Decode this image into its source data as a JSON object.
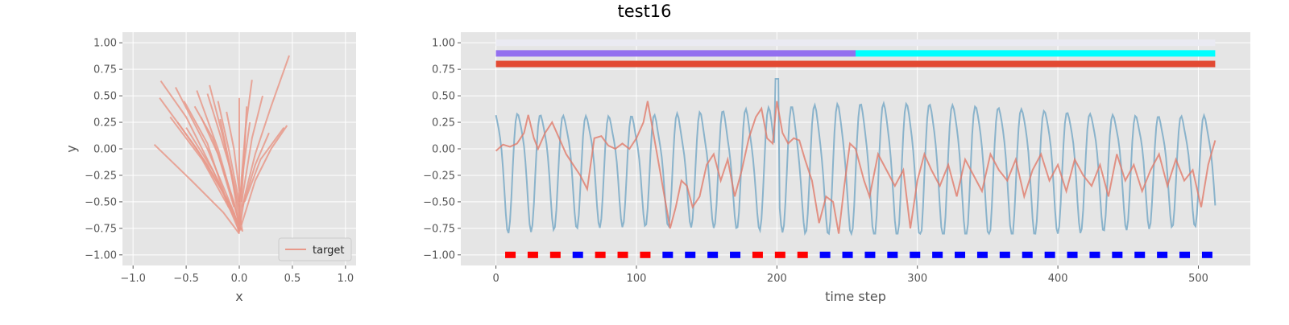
{
  "figure": {
    "suptitle": "test16"
  },
  "colors": {
    "axes_bg": "#e5e5e5",
    "grid": "#ffffff",
    "target": "#e8998a",
    "red_series": "#e07b6a",
    "blue_series": "#7aaac7",
    "bar_light": "#eaeaf2",
    "bar_purple": "#9370ef",
    "bar_cyan": "#00ffff",
    "bar_red": "#e24a33",
    "marker_red": "#ff0000",
    "marker_blue": "#0000ff"
  },
  "chart_data": [
    {
      "id": "left",
      "type": "line",
      "title": "",
      "xlabel": "x",
      "ylabel": "y",
      "xlim": [
        -1.1,
        1.1
      ],
      "ylim": [
        -1.1,
        1.1
      ],
      "xticks": [
        -1.0,
        -0.5,
        0.0,
        0.5,
        1.0
      ],
      "xtick_labels": [
        "−1.0",
        "−0.5",
        "0.0",
        "0.5",
        "1.0"
      ],
      "yticks": [
        -1.0,
        -0.75,
        -0.5,
        -0.25,
        0.0,
        0.25,
        0.5,
        0.75,
        1.0
      ],
      "ytick_labels": [
        "−1.00",
        "−0.75",
        "−0.50",
        "−0.25",
        "0.00",
        "0.25",
        "0.50",
        "0.75",
        "1.00"
      ],
      "grid": true,
      "legend": {
        "position": "lower-right",
        "entries": [
          "target"
        ]
      },
      "series": [
        {
          "name": "target",
          "strokes": [
            [
              [
                -0.8,
                0.04
              ],
              [
                -0.45,
                -0.3
              ],
              [
                -0.15,
                -0.6
              ],
              [
                0.0,
                -0.8
              ]
            ],
            [
              [
                -0.74,
                0.64
              ],
              [
                -0.5,
                0.3
              ],
              [
                -0.2,
                -0.3
              ],
              [
                0.0,
                -0.78
              ]
            ],
            [
              [
                -0.75,
                0.48
              ],
              [
                -0.4,
                0.0
              ],
              [
                -0.1,
                -0.5
              ],
              [
                0.02,
                -0.77
              ]
            ],
            [
              [
                -0.6,
                0.58
              ],
              [
                -0.3,
                0.0
              ],
              [
                -0.05,
                -0.6
              ],
              [
                0.0,
                -0.75
              ]
            ],
            [
              [
                -0.58,
                0.25
              ],
              [
                -0.3,
                -0.15
              ],
              [
                -0.05,
                -0.6
              ],
              [
                0.0,
                -0.8
              ]
            ],
            [
              [
                -0.4,
                0.55
              ],
              [
                -0.2,
                0.0
              ],
              [
                0.0,
                -0.7
              ]
            ],
            [
              [
                -0.28,
                0.6
              ],
              [
                -0.15,
                0.1
              ],
              [
                0.0,
                -0.6
              ],
              [
                0.03,
                -0.78
              ]
            ],
            [
              [
                -0.2,
                0.45
              ],
              [
                -0.1,
                0.0
              ],
              [
                0.0,
                -0.5
              ]
            ],
            [
              [
                -0.42,
                0.4
              ],
              [
                -0.25,
                0.1
              ],
              [
                -0.05,
                -0.5
              ],
              [
                0.0,
                -0.72
              ]
            ],
            [
              [
                -0.52,
                0.45
              ],
              [
                -0.3,
                0.05
              ],
              [
                -0.1,
                -0.55
              ]
            ],
            [
              [
                -0.36,
                0.3
              ],
              [
                -0.2,
                -0.05
              ],
              [
                -0.05,
                -0.55
              ]
            ],
            [
              [
                -0.65,
                0.3
              ],
              [
                -0.35,
                -0.1
              ],
              [
                -0.1,
                -0.55
              ],
              [
                0.02,
                -0.76
              ]
            ],
            [
              [
                -0.3,
                0.52
              ],
              [
                -0.2,
                0.2
              ],
              [
                -0.08,
                -0.2
              ],
              [
                0.0,
                -0.7
              ]
            ],
            [
              [
                -0.12,
                0.35
              ],
              [
                -0.05,
                0.0
              ],
              [
                0.0,
                -0.4
              ]
            ],
            [
              [
                0.0,
                0.48
              ],
              [
                0.0,
                0.0
              ],
              [
                0.0,
                -0.55
              ],
              [
                0.0,
                -0.78
              ]
            ],
            [
              [
                0.07,
                0.4
              ],
              [
                0.05,
                0.0
              ],
              [
                0.02,
                -0.5
              ]
            ],
            [
              [
                0.12,
                0.65
              ],
              [
                0.06,
                0.2
              ],
              [
                0.02,
                -0.3
              ],
              [
                0.0,
                -0.7
              ]
            ],
            [
              [
                0.22,
                0.5
              ],
              [
                0.12,
                0.1
              ],
              [
                0.03,
                -0.45
              ],
              [
                0.0,
                -0.78
              ]
            ],
            [
              [
                0.1,
                0.25
              ],
              [
                0.05,
                -0.1
              ],
              [
                0.0,
                -0.5
              ]
            ],
            [
              [
                0.47,
                0.88
              ],
              [
                0.3,
                0.4
              ],
              [
                0.15,
                -0.05
              ],
              [
                0.05,
                -0.45
              ],
              [
                0.0,
                -0.78
              ]
            ],
            [
              [
                0.45,
                0.22
              ],
              [
                0.3,
                0.0
              ],
              [
                0.15,
                -0.3
              ],
              [
                0.02,
                -0.72
              ]
            ],
            [
              [
                0.42,
                0.2
              ],
              [
                0.2,
                -0.1
              ],
              [
                0.05,
                -0.5
              ]
            ],
            [
              [
                0.28,
                0.15
              ],
              [
                0.15,
                -0.15
              ],
              [
                0.03,
                -0.55
              ]
            ],
            [
              [
                -0.18,
                0.28
              ],
              [
                -0.1,
                -0.1
              ],
              [
                0.0,
                -0.55
              ]
            ],
            [
              [
                -0.5,
                0.2
              ],
              [
                -0.25,
                -0.2
              ],
              [
                -0.05,
                -0.62
              ]
            ]
          ]
        }
      ]
    },
    {
      "id": "right",
      "type": "line",
      "title": "",
      "xlabel": "time step",
      "ylabel": "",
      "xlim": [
        -25,
        537
      ],
      "ylim": [
        -1.1,
        1.1
      ],
      "xticks": [
        0,
        100,
        200,
        300,
        400,
        500
      ],
      "xtick_labels": [
        "0",
        "100",
        "200",
        "300",
        "400",
        "500"
      ],
      "yticks": [
        -1.0,
        -0.75,
        -0.5,
        -0.25,
        0.0,
        0.25,
        0.5,
        0.75,
        1.0
      ],
      "ytick_labels": [
        "−1.00",
        "−0.75",
        "−0.50",
        "−0.25",
        "0.00",
        "0.25",
        "0.50",
        "0.75",
        "1.00"
      ],
      "grid": true,
      "bars": [
        {
          "y": 1.0,
          "segments": [
            {
              "x0": 0,
              "x1": 512,
              "color": "#eaeaf2"
            }
          ]
        },
        {
          "y": 0.9,
          "segments": [
            {
              "x0": 0,
              "x1": 256,
              "color": "#9370ef"
            },
            {
              "x0": 256,
              "x1": 512,
              "color": "#00ffff"
            }
          ]
        },
        {
          "y": 0.8,
          "segments": [
            {
              "x0": 0,
              "x1": 512,
              "color": "#e24a33"
            }
          ]
        }
      ],
      "markers": {
        "y": -1.0,
        "x_start": 10,
        "x_step": 16,
        "count": 32,
        "colors": [
          "red",
          "red",
          "red",
          "blue",
          "red",
          "red",
          "red",
          "blue",
          "blue",
          "blue",
          "blue",
          "red",
          "red",
          "red",
          "blue",
          "blue",
          "blue",
          "blue",
          "blue",
          "blue",
          "blue",
          "blue",
          "blue",
          "blue",
          "blue",
          "blue",
          "blue",
          "blue",
          "blue",
          "blue",
          "blue",
          "blue"
        ]
      },
      "series": [
        {
          "color": "#e07b6a",
          "points": [
            [
              0,
              -0.02
            ],
            [
              5,
              0.04
            ],
            [
              10,
              0.02
            ],
            [
              15,
              0.05
            ],
            [
              20,
              0.15
            ],
            [
              23,
              0.32
            ],
            [
              27,
              0.1
            ],
            [
              30,
              0.0
            ],
            [
              35,
              0.15
            ],
            [
              40,
              0.25
            ],
            [
              45,
              0.1
            ],
            [
              50,
              -0.05
            ],
            [
              55,
              -0.15
            ],
            [
              60,
              -0.25
            ],
            [
              65,
              -0.38
            ],
            [
              70,
              0.1
            ],
            [
              75,
              0.12
            ],
            [
              80,
              0.03
            ],
            [
              85,
              0.0
            ],
            [
              90,
              0.05
            ],
            [
              95,
              0.0
            ],
            [
              100,
              0.1
            ],
            [
              105,
              0.25
            ],
            [
              108,
              0.45
            ],
            [
              112,
              0.15
            ],
            [
              116,
              -0.15
            ],
            [
              120,
              -0.45
            ],
            [
              124,
              -0.75
            ],
            [
              128,
              -0.55
            ],
            [
              132,
              -0.3
            ],
            [
              136,
              -0.35
            ],
            [
              140,
              -0.55
            ],
            [
              145,
              -0.45
            ],
            [
              150,
              -0.15
            ],
            [
              155,
              -0.05
            ],
            [
              160,
              -0.3
            ],
            [
              165,
              -0.1
            ],
            [
              170,
              -0.45
            ],
            [
              175,
              -0.2
            ],
            [
              180,
              0.1
            ],
            [
              185,
              0.3
            ],
            [
              189,
              0.38
            ],
            [
              193,
              0.1
            ],
            [
              197,
              0.05
            ],
            [
              200,
              0.45
            ],
            [
              204,
              0.15
            ],
            [
              208,
              0.05
            ],
            [
              212,
              0.1
            ],
            [
              216,
              0.08
            ],
            [
              220,
              -0.1
            ],
            [
              225,
              -0.3
            ],
            [
              230,
              -0.7
            ],
            [
              235,
              -0.45
            ],
            [
              240,
              -0.5
            ],
            [
              244,
              -0.8
            ],
            [
              248,
              -0.35
            ],
            [
              252,
              0.05
            ],
            [
              256,
              0.0
            ],
            [
              262,
              -0.3
            ],
            [
              266,
              -0.45
            ],
            [
              272,
              -0.05
            ],
            [
              278,
              -0.2
            ],
            [
              284,
              -0.35
            ],
            [
              290,
              -0.2
            ],
            [
              295,
              -0.75
            ],
            [
              300,
              -0.3
            ],
            [
              305,
              -0.05
            ],
            [
              310,
              -0.2
            ],
            [
              316,
              -0.35
            ],
            [
              322,
              -0.15
            ],
            [
              328,
              -0.45
            ],
            [
              334,
              -0.1
            ],
            [
              340,
              -0.25
            ],
            [
              346,
              -0.4
            ],
            [
              352,
              -0.05
            ],
            [
              358,
              -0.2
            ],
            [
              364,
              -0.3
            ],
            [
              370,
              -0.1
            ],
            [
              376,
              -0.45
            ],
            [
              382,
              -0.2
            ],
            [
              388,
              -0.05
            ],
            [
              394,
              -0.3
            ],
            [
              400,
              -0.15
            ],
            [
              406,
              -0.4
            ],
            [
              412,
              -0.1
            ],
            [
              418,
              -0.25
            ],
            [
              424,
              -0.35
            ],
            [
              430,
              -0.15
            ],
            [
              436,
              -0.45
            ],
            [
              442,
              -0.05
            ],
            [
              448,
              -0.3
            ],
            [
              454,
              -0.15
            ],
            [
              460,
              -0.4
            ],
            [
              466,
              -0.2
            ],
            [
              472,
              -0.05
            ],
            [
              478,
              -0.35
            ],
            [
              484,
              -0.1
            ],
            [
              490,
              -0.3
            ],
            [
              496,
              -0.2
            ],
            [
              502,
              -0.55
            ],
            [
              507,
              -0.15
            ],
            [
              512,
              0.08
            ]
          ]
        },
        {
          "color": "#7aaac7",
          "periodic": {
            "x0": 0,
            "x1": 512,
            "period": 16.3,
            "phase": 1.6
          },
          "points": []
        }
      ]
    }
  ]
}
